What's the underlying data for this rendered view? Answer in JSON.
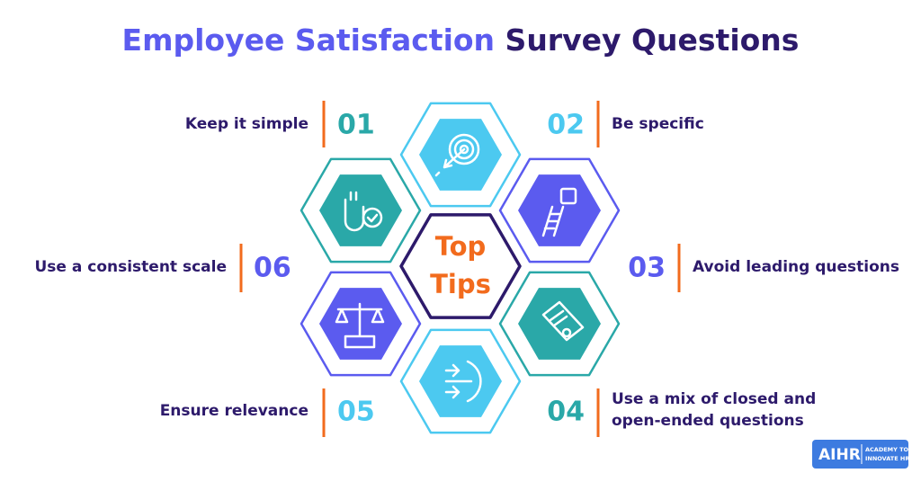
{
  "title": {
    "highlight": "Employee Satisfaction",
    "rest": "Survey Questions"
  },
  "center": {
    "lines": [
      "Top",
      "Tips"
    ]
  },
  "tips": [
    {
      "number": "01",
      "text": [
        "Keep it simple"
      ]
    },
    {
      "number": "02",
      "text": [
        "Be specific"
      ]
    },
    {
      "number": "03",
      "text": [
        "Avoid leading questions"
      ]
    },
    {
      "number": "04",
      "text": [
        "Use a mix of closed and",
        "open-ended questions"
      ]
    },
    {
      "number": "05",
      "text": [
        "Ensure relevance"
      ]
    },
    {
      "number": "06",
      "text": [
        "Use a consistent scale"
      ]
    }
  ],
  "logo": {
    "name": "AIHR",
    "tagline": [
      "ACADEMY TO",
      "INNOVATE HR"
    ]
  }
}
